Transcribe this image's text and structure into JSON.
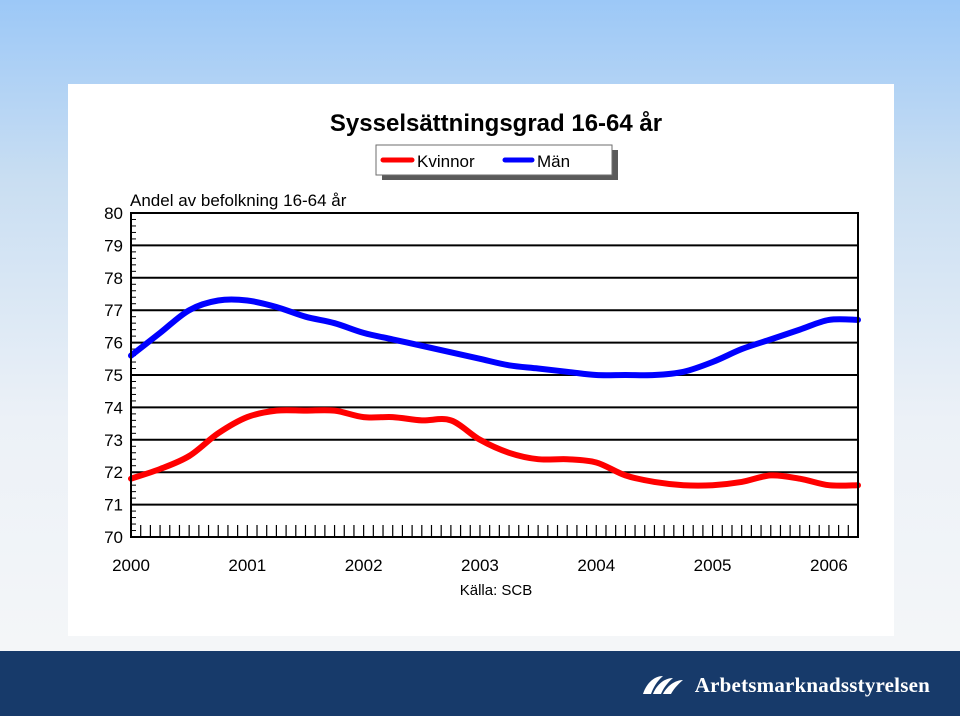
{
  "chart_data": {
    "type": "line",
    "title": "Sysselsättningsgrad 16-64 år",
    "ylabel": "Andel av befolkning 16-64 år",
    "source": "Källa: SCB",
    "ylim": [
      70,
      80
    ],
    "yticks": [
      "70",
      "71",
      "72",
      "73",
      "74",
      "75",
      "76",
      "77",
      "78",
      "79",
      "80"
    ],
    "xlim": [
      2000,
      2006.25
    ],
    "xticks": [
      "2000",
      "2001",
      "2002",
      "2003",
      "2004",
      "2005",
      "2006"
    ],
    "grid": "horizontal",
    "legend": "top-right",
    "series": [
      {
        "name": "Kvinnor",
        "color": "#ff0000",
        "x": [
          2000.0,
          2000.25,
          2000.5,
          2000.75,
          2001.0,
          2001.25,
          2001.5,
          2001.75,
          2002.0,
          2002.25,
          2002.5,
          2002.75,
          2003.0,
          2003.25,
          2003.5,
          2003.75,
          2004.0,
          2004.25,
          2004.5,
          2004.75,
          2005.0,
          2005.25,
          2005.5,
          2005.75,
          2006.0,
          2006.25
        ],
        "y": [
          71.8,
          72.1,
          72.5,
          73.2,
          73.7,
          73.9,
          73.9,
          73.9,
          73.7,
          73.7,
          73.6,
          73.6,
          73.0,
          72.6,
          72.4,
          72.4,
          72.3,
          71.9,
          71.7,
          71.6,
          71.6,
          71.7,
          71.9,
          71.8,
          71.6,
          71.6
        ]
      },
      {
        "name": "Män",
        "color": "#0000ff",
        "x": [
          2000.0,
          2000.25,
          2000.5,
          2000.75,
          2001.0,
          2001.25,
          2001.5,
          2001.75,
          2002.0,
          2002.25,
          2002.5,
          2002.75,
          2003.0,
          2003.25,
          2003.5,
          2003.75,
          2004.0,
          2004.25,
          2004.5,
          2004.75,
          2005.0,
          2005.25,
          2005.5,
          2005.75,
          2006.0,
          2006.25
        ],
        "y": [
          75.6,
          76.3,
          77.0,
          77.3,
          77.3,
          77.1,
          76.8,
          76.6,
          76.3,
          76.1,
          75.9,
          75.7,
          75.5,
          75.3,
          75.2,
          75.1,
          75.0,
          75.0,
          75.0,
          75.1,
          75.4,
          75.8,
          76.1,
          76.4,
          76.7,
          76.7
        ]
      }
    ]
  },
  "footer": {
    "logo_text": "Arbetsmarknadsstyrelsen",
    "logo_icon": "ams-logo-icon"
  }
}
